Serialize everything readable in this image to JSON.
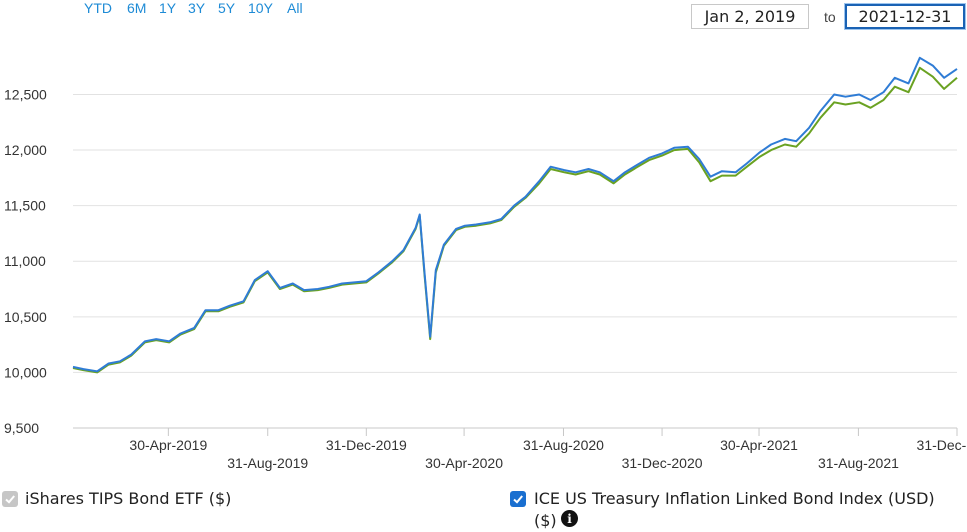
{
  "range_buttons": [
    "YTD",
    "6M",
    "1Y",
    "3Y",
    "5Y",
    "10Y",
    "All"
  ],
  "date_range": {
    "from": "Jan 2, 2019",
    "to_label": "to",
    "to": "2021-12-31"
  },
  "legend": {
    "etf_label": "iShares TIPS Bond ETF ($)",
    "index_label_line1": "ICE US Treasury Inflation Linked Bond Index (USD)",
    "index_label_line2": "($)",
    "info_icon": "info-icon"
  },
  "colors": {
    "etf": "#6aa222",
    "index": "#2f7cd5",
    "accent": "#1e8bd6"
  },
  "chart_data": {
    "type": "line",
    "ylim": [
      9500,
      12900
    ],
    "y_ticks": [
      9500,
      10000,
      10500,
      11000,
      11500,
      12000,
      12500
    ],
    "y_tick_labels": [
      "9,500",
      "10,000",
      "10,500",
      "11,000",
      "11,500",
      "12,000",
      "12,500"
    ],
    "x_tick_labels": [
      {
        "date": "2019-04-30",
        "label": "30-Apr-2019",
        "row": 1
      },
      {
        "date": "2019-08-31",
        "label": "31-Aug-2019",
        "row": 2
      },
      {
        "date": "2019-12-31",
        "label": "31-Dec-2019",
        "row": 1
      },
      {
        "date": "2020-04-30",
        "label": "30-Apr-2020",
        "row": 2
      },
      {
        "date": "2020-08-31",
        "label": "31-Aug-2020",
        "row": 1
      },
      {
        "date": "2020-12-31",
        "label": "31-Dec-2020",
        "row": 2
      },
      {
        "date": "2021-04-30",
        "label": "30-Apr-2021",
        "row": 1
      },
      {
        "date": "2021-08-31",
        "label": "31-Aug-2021",
        "row": 2
      },
      {
        "date": "2021-12-31",
        "label": "31-Dec-2021",
        "row": 1
      }
    ],
    "grid": true,
    "series": [
      {
        "name": "ICE US Treasury Inflation Linked Bond Index (USD) ($)",
        "points": [
          [
            "2019-01-02",
            10050
          ],
          [
            "2019-01-15",
            10030
          ],
          [
            "2019-02-01",
            10010
          ],
          [
            "2019-02-15",
            10080
          ],
          [
            "2019-03-01",
            10100
          ],
          [
            "2019-03-15",
            10160
          ],
          [
            "2019-04-01",
            10280
          ],
          [
            "2019-04-15",
            10300
          ],
          [
            "2019-05-01",
            10280
          ],
          [
            "2019-05-15",
            10350
          ],
          [
            "2019-06-01",
            10400
          ],
          [
            "2019-06-15",
            10560
          ],
          [
            "2019-07-01",
            10560
          ],
          [
            "2019-07-15",
            10600
          ],
          [
            "2019-08-01",
            10640
          ],
          [
            "2019-08-15",
            10830
          ],
          [
            "2019-08-31",
            10910
          ],
          [
            "2019-09-15",
            10760
          ],
          [
            "2019-10-01",
            10800
          ],
          [
            "2019-10-15",
            10740
          ],
          [
            "2019-11-01",
            10750
          ],
          [
            "2019-11-15",
            10770
          ],
          [
            "2019-12-01",
            10800
          ],
          [
            "2019-12-31",
            10820
          ],
          [
            "2020-01-15",
            10900
          ],
          [
            "2020-02-01",
            11000
          ],
          [
            "2020-02-15",
            11100
          ],
          [
            "2020-03-01",
            11300
          ],
          [
            "2020-03-06",
            11420
          ],
          [
            "2020-03-12",
            10900
          ],
          [
            "2020-03-19",
            10320
          ],
          [
            "2020-03-26",
            10920
          ],
          [
            "2020-04-05",
            11150
          ],
          [
            "2020-04-20",
            11290
          ],
          [
            "2020-05-01",
            11320
          ],
          [
            "2020-05-15",
            11330
          ],
          [
            "2020-06-01",
            11350
          ],
          [
            "2020-06-15",
            11380
          ],
          [
            "2020-07-01",
            11500
          ],
          [
            "2020-07-15",
            11580
          ],
          [
            "2020-08-01",
            11720
          ],
          [
            "2020-08-15",
            11850
          ],
          [
            "2020-09-01",
            11820
          ],
          [
            "2020-09-15",
            11800
          ],
          [
            "2020-10-01",
            11830
          ],
          [
            "2020-10-15",
            11800
          ],
          [
            "2020-11-01",
            11720
          ],
          [
            "2020-11-15",
            11800
          ],
          [
            "2020-12-01",
            11870
          ],
          [
            "2020-12-15",
            11930
          ],
          [
            "2020-12-31",
            11970
          ],
          [
            "2021-01-15",
            12020
          ],
          [
            "2021-02-01",
            12030
          ],
          [
            "2021-02-15",
            11920
          ],
          [
            "2021-03-01",
            11760
          ],
          [
            "2021-03-15",
            11810
          ],
          [
            "2021-04-01",
            11800
          ],
          [
            "2021-04-15",
            11880
          ],
          [
            "2021-05-01",
            11980
          ],
          [
            "2021-05-15",
            12050
          ],
          [
            "2021-06-01",
            12100
          ],
          [
            "2021-06-15",
            12080
          ],
          [
            "2021-07-01",
            12200
          ],
          [
            "2021-07-15",
            12350
          ],
          [
            "2021-08-01",
            12500
          ],
          [
            "2021-08-15",
            12480
          ],
          [
            "2021-09-01",
            12500
          ],
          [
            "2021-09-15",
            12450
          ],
          [
            "2021-10-01",
            12520
          ],
          [
            "2021-10-15",
            12650
          ],
          [
            "2021-11-01",
            12600
          ],
          [
            "2021-11-15",
            12830
          ],
          [
            "2021-12-01",
            12760
          ],
          [
            "2021-12-15",
            12650
          ],
          [
            "2021-12-31",
            12730
          ]
        ]
      },
      {
        "name": "iShares TIPS Bond ETF ($)",
        "points": [
          [
            "2019-01-02",
            10040
          ],
          [
            "2019-01-15",
            10020
          ],
          [
            "2019-02-01",
            10000
          ],
          [
            "2019-02-15",
            10070
          ],
          [
            "2019-03-01",
            10090
          ],
          [
            "2019-03-15",
            10150
          ],
          [
            "2019-04-01",
            10270
          ],
          [
            "2019-04-15",
            10290
          ],
          [
            "2019-05-01",
            10270
          ],
          [
            "2019-05-15",
            10340
          ],
          [
            "2019-06-01",
            10390
          ],
          [
            "2019-06-15",
            10550
          ],
          [
            "2019-07-01",
            10550
          ],
          [
            "2019-07-15",
            10590
          ],
          [
            "2019-08-01",
            10630
          ],
          [
            "2019-08-15",
            10820
          ],
          [
            "2019-08-31",
            10900
          ],
          [
            "2019-09-15",
            10750
          ],
          [
            "2019-10-01",
            10790
          ],
          [
            "2019-10-15",
            10730
          ],
          [
            "2019-11-01",
            10740
          ],
          [
            "2019-11-15",
            10760
          ],
          [
            "2019-12-01",
            10790
          ],
          [
            "2019-12-31",
            10810
          ],
          [
            "2020-01-15",
            10890
          ],
          [
            "2020-02-01",
            10990
          ],
          [
            "2020-02-15",
            11090
          ],
          [
            "2020-03-01",
            11290
          ],
          [
            "2020-03-06",
            11410
          ],
          [
            "2020-03-12",
            10880
          ],
          [
            "2020-03-19",
            10300
          ],
          [
            "2020-03-26",
            10900
          ],
          [
            "2020-04-05",
            11140
          ],
          [
            "2020-04-20",
            11280
          ],
          [
            "2020-05-01",
            11310
          ],
          [
            "2020-05-15",
            11320
          ],
          [
            "2020-06-01",
            11340
          ],
          [
            "2020-06-15",
            11370
          ],
          [
            "2020-07-01",
            11490
          ],
          [
            "2020-07-15",
            11570
          ],
          [
            "2020-08-01",
            11700
          ],
          [
            "2020-08-15",
            11830
          ],
          [
            "2020-09-01",
            11800
          ],
          [
            "2020-09-15",
            11780
          ],
          [
            "2020-10-01",
            11810
          ],
          [
            "2020-10-15",
            11780
          ],
          [
            "2020-11-01",
            11700
          ],
          [
            "2020-11-15",
            11780
          ],
          [
            "2020-12-01",
            11850
          ],
          [
            "2020-12-15",
            11910
          ],
          [
            "2020-12-31",
            11950
          ],
          [
            "2021-01-15",
            12000
          ],
          [
            "2021-02-01",
            12010
          ],
          [
            "2021-02-15",
            11890
          ],
          [
            "2021-03-01",
            11720
          ],
          [
            "2021-03-15",
            11770
          ],
          [
            "2021-04-01",
            11770
          ],
          [
            "2021-04-15",
            11850
          ],
          [
            "2021-05-01",
            11940
          ],
          [
            "2021-05-15",
            12000
          ],
          [
            "2021-06-01",
            12050
          ],
          [
            "2021-06-15",
            12030
          ],
          [
            "2021-07-01",
            12150
          ],
          [
            "2021-07-15",
            12290
          ],
          [
            "2021-08-01",
            12430
          ],
          [
            "2021-08-15",
            12410
          ],
          [
            "2021-09-01",
            12430
          ],
          [
            "2021-09-15",
            12380
          ],
          [
            "2021-10-01",
            12450
          ],
          [
            "2021-10-15",
            12570
          ],
          [
            "2021-11-01",
            12520
          ],
          [
            "2021-11-15",
            12740
          ],
          [
            "2021-12-01",
            12660
          ],
          [
            "2021-12-15",
            12550
          ],
          [
            "2021-12-31",
            12650
          ]
        ]
      }
    ]
  }
}
